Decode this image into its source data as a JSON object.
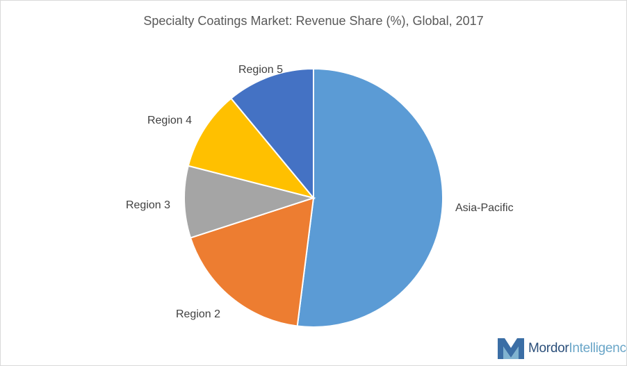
{
  "chart_data": {
    "type": "pie",
    "title": "Specialty Coatings Market: Revenue Share (%), Global, 2017",
    "slices": [
      {
        "label": "Asia-Pacific",
        "value": 52,
        "color": "#5b9bd5"
      },
      {
        "label": "Region 2",
        "value": 18,
        "color": "#ed7d31"
      },
      {
        "label": "Region 3",
        "value": 9,
        "color": "#a5a5a5"
      },
      {
        "label": "Region 4",
        "value": 10,
        "color": "#ffc000"
      },
      {
        "label": "Region 5",
        "value": 11,
        "color": "#4472c4"
      }
    ],
    "start": "12 o'clock",
    "direction": "clockwise",
    "legend": "none"
  },
  "logo": {
    "name_first": "Mordor",
    "name_second": "Intelligence"
  }
}
